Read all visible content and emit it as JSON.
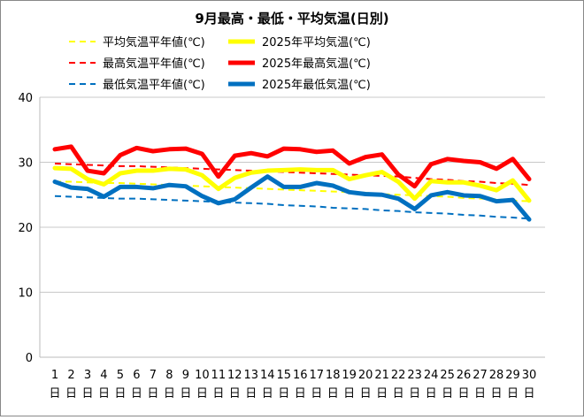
{
  "chart_data": {
    "type": "line",
    "title": "9月最高・最低・平均気温(日別)",
    "xlabel": "",
    "ylabel": "",
    "ylim": [
      0,
      40
    ],
    "yticks": [
      0,
      10,
      20,
      30,
      40
    ],
    "grid": true,
    "legend_placement": "top",
    "categories": [
      "1",
      "2",
      "3",
      "4",
      "5",
      "6",
      "7",
      "8",
      "9",
      "10",
      "11",
      "12",
      "13",
      "14",
      "15",
      "16",
      "17",
      "18",
      "19",
      "20",
      "21",
      "22",
      "23",
      "24",
      "25",
      "26",
      "27",
      "28",
      "29",
      "30"
    ],
    "category_suffix": "日",
    "series": [
      {
        "name": "平均気温平年値(℃)",
        "color": "#FFFF00",
        "style": "dashed",
        "values": [
          27.0,
          27.0,
          26.9,
          26.8,
          26.8,
          26.7,
          26.6,
          26.5,
          26.4,
          26.3,
          26.2,
          26.1,
          26.0,
          25.9,
          25.8,
          25.7,
          25.6,
          25.5,
          25.4,
          25.3,
          25.1,
          25.0,
          24.9,
          24.8,
          24.7,
          24.5,
          24.4,
          24.3,
          24.1,
          24.0
        ]
      },
      {
        "name": "2025年平均気温(℃)",
        "color": "#FFFF00",
        "style": "solid",
        "values": [
          29.1,
          29.0,
          27.4,
          26.6,
          28.3,
          28.7,
          28.7,
          29.0,
          28.9,
          28.0,
          25.9,
          27.6,
          28.4,
          28.7,
          28.8,
          28.9,
          28.8,
          28.8,
          27.4,
          28.0,
          28.5,
          27.0,
          24.4,
          27.1,
          26.9,
          26.9,
          26.4,
          25.7,
          27.2,
          24.1
        ]
      },
      {
        "name": "最高気温平年値(℃)",
        "color": "#FF0000",
        "style": "dashed",
        "values": [
          29.8,
          29.7,
          29.6,
          29.5,
          29.4,
          29.4,
          29.3,
          29.2,
          29.1,
          29.0,
          28.9,
          28.8,
          28.7,
          28.6,
          28.5,
          28.4,
          28.3,
          28.2,
          28.1,
          28.0,
          27.9,
          27.8,
          27.6,
          27.4,
          27.3,
          27.1,
          27.0,
          26.8,
          26.7,
          26.5
        ]
      },
      {
        "name": "2025年最高気温(℃)",
        "color": "#FF0000",
        "style": "solid",
        "values": [
          32.0,
          32.4,
          28.7,
          28.3,
          31.1,
          32.2,
          31.7,
          32.0,
          32.1,
          31.3,
          27.8,
          31.0,
          31.4,
          30.9,
          32.1,
          32.0,
          31.6,
          31.8,
          29.8,
          30.8,
          31.2,
          28.1,
          26.3,
          29.7,
          30.5,
          30.2,
          30.0,
          29.0,
          30.5,
          27.4
        ]
      },
      {
        "name": "最低気温平年値(℃)",
        "color": "#0070C0",
        "style": "dashed",
        "values": [
          24.8,
          24.7,
          24.6,
          24.5,
          24.4,
          24.4,
          24.3,
          24.2,
          24.1,
          24.0,
          23.9,
          23.8,
          23.7,
          23.6,
          23.4,
          23.3,
          23.2,
          23.0,
          22.9,
          22.8,
          22.6,
          22.5,
          22.3,
          22.2,
          22.1,
          21.9,
          21.8,
          21.6,
          21.5,
          21.3
        ]
      },
      {
        "name": "2025年最低気温(℃)",
        "color": "#0070C0",
        "style": "solid",
        "values": [
          27.0,
          26.1,
          25.9,
          24.7,
          26.2,
          26.2,
          26.0,
          26.5,
          26.3,
          24.8,
          23.7,
          24.3,
          26.1,
          27.8,
          26.2,
          26.2,
          26.8,
          26.4,
          25.4,
          25.1,
          25.0,
          24.4,
          22.8,
          24.9,
          25.4,
          24.9,
          24.8,
          24.0,
          24.2,
          21.2
        ]
      }
    ]
  }
}
